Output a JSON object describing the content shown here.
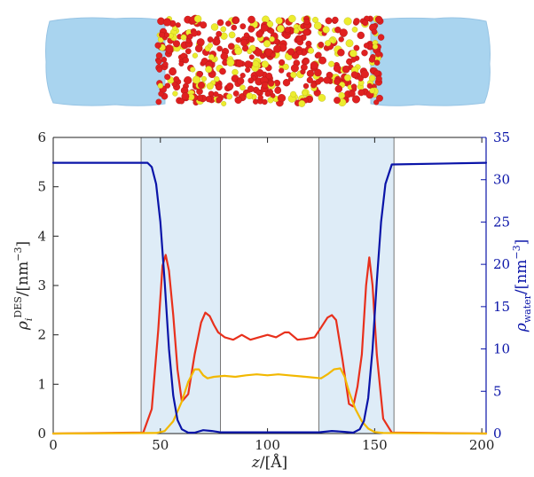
{
  "illustration": {
    "label": "simulation-snapshot",
    "water_color": "#a9d3ee",
    "des_colors": [
      "#e02020",
      "#ecec2e"
    ]
  },
  "chart_data": {
    "type": "line",
    "xlabel": "z/[Å]",
    "ylabel_left": "ρ_i^DES/[nm^-3]",
    "ylabel_right": "ρ_water/[nm^-3]",
    "xlim": [
      0,
      202
    ],
    "ylim_left": [
      0,
      6
    ],
    "ylim_right": [
      0,
      35
    ],
    "xticks": [
      "0",
      "50",
      "100",
      "150",
      "200"
    ],
    "yticks_left": [
      "0",
      "1",
      "2",
      "3",
      "4",
      "5",
      "6"
    ],
    "yticks_right": [
      "0",
      "5",
      "10",
      "15",
      "20",
      "25",
      "30",
      "35"
    ],
    "shaded_regions": [
      [
        41,
        78
      ],
      [
        124,
        159
      ]
    ],
    "grid": false,
    "series": [
      {
        "color": "#e8301c",
        "axis": "left",
        "x": [
          0,
          42,
          46,
          49,
          51,
          52.5,
          54,
          56,
          58,
          60,
          63,
          66,
          69,
          71,
          73,
          75,
          77,
          80,
          84,
          88,
          92,
          96,
          100,
          104,
          108,
          110,
          114,
          118,
          122,
          125,
          128,
          130,
          132,
          135,
          138,
          140,
          142,
          144,
          146,
          147.5,
          149,
          151,
          154,
          158,
          202
        ],
        "y": [
          0,
          0.02,
          0.5,
          2.1,
          3.4,
          3.62,
          3.3,
          2.4,
          1.3,
          0.65,
          0.8,
          1.6,
          2.25,
          2.45,
          2.38,
          2.2,
          2.05,
          1.95,
          1.9,
          2.0,
          1.9,
          1.95,
          2.0,
          1.95,
          2.05,
          2.05,
          1.9,
          1.92,
          1.95,
          2.15,
          2.35,
          2.4,
          2.3,
          1.5,
          0.6,
          0.55,
          0.95,
          1.6,
          3.0,
          3.57,
          3.0,
          1.6,
          0.3,
          0.02,
          0
        ]
      },
      {
        "color": "#f2b800",
        "axis": "left",
        "x": [
          0,
          48,
          52,
          56,
          60,
          63,
          66,
          68,
          70,
          72,
          75,
          80,
          85,
          90,
          95,
          100,
          105,
          110,
          115,
          120,
          125,
          128,
          131,
          134,
          136,
          138,
          141,
          144,
          147,
          150,
          154,
          202
        ],
        "y": [
          0,
          0.01,
          0.05,
          0.25,
          0.65,
          1.05,
          1.3,
          1.3,
          1.18,
          1.12,
          1.15,
          1.17,
          1.15,
          1.18,
          1.2,
          1.18,
          1.2,
          1.18,
          1.16,
          1.14,
          1.12,
          1.2,
          1.3,
          1.32,
          1.15,
          0.85,
          0.5,
          0.25,
          0.1,
          0.03,
          0.01,
          0
        ]
      },
      {
        "color": "#0a14a8",
        "axis": "right",
        "x": [
          0,
          44,
          46,
          48,
          50,
          52,
          54,
          56,
          58,
          60,
          63,
          66,
          70,
          74,
          78,
          100,
          124,
          130,
          136,
          140,
          143,
          145,
          147,
          149,
          151,
          153,
          155,
          158,
          202
        ],
        "y": [
          32,
          32,
          31.5,
          29.5,
          25,
          18,
          10,
          4.5,
          1.6,
          0.5,
          0.1,
          0.1,
          0.4,
          0.3,
          0.15,
          0.15,
          0.15,
          0.3,
          0.2,
          0.1,
          0.5,
          1.5,
          4.2,
          10,
          18,
          25,
          29.5,
          31.8,
          32
        ]
      }
    ]
  }
}
